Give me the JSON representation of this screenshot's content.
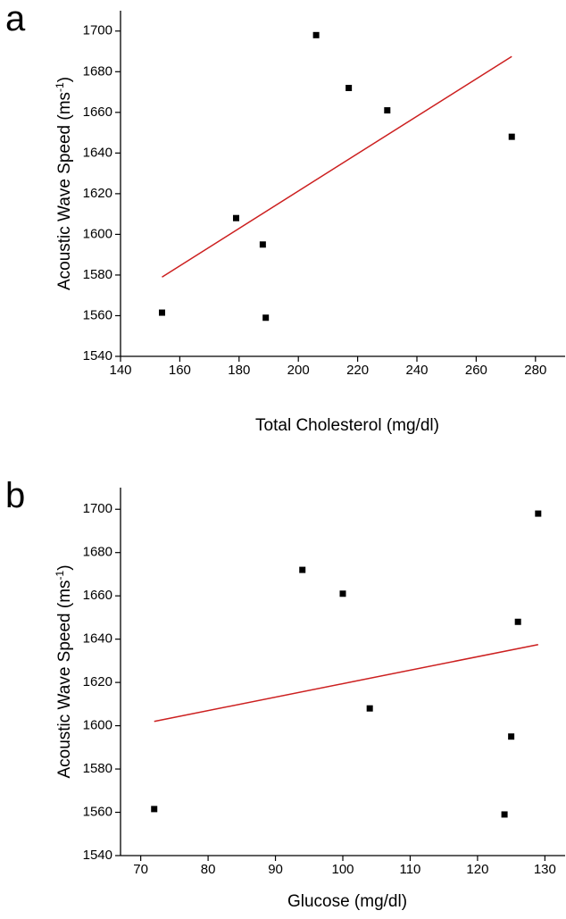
{
  "chart_data": [
    {
      "type": "scatter",
      "panel_label": "a",
      "x_label": "Total Cholesterol (mg/dl)",
      "y_label": [
        "Acoustic Wave Speed (ms",
        "-1",
        ")"
      ],
      "x": [
        154,
        179,
        188,
        189,
        206,
        217,
        230,
        272
      ],
      "values": [
        1561.5,
        1608,
        1595,
        1559,
        1698,
        1672,
        1661,
        1648
      ],
      "color": "#000000",
      "fit": {
        "x": [
          154,
          272
        ],
        "values": [
          1579,
          1687.5
        ],
        "color": "#cc1f1f"
      },
      "xlim": [
        140,
        290
      ],
      "xticks": [
        140,
        160,
        180,
        200,
        220,
        240,
        260,
        280
      ],
      "ylim": [
        1540,
        1710
      ],
      "yticks": [
        1540,
        1560,
        1580,
        1600,
        1620,
        1640,
        1660,
        1680,
        1700
      ]
    },
    {
      "type": "scatter",
      "panel_label": "b",
      "x_label": "Glucose (mg/dl)",
      "y_label": [
        "Acoustic Wave Speed (ms",
        "-1",
        ")"
      ],
      "x": [
        72,
        94,
        100,
        104,
        124,
        125,
        126,
        129
      ],
      "values": [
        1561.5,
        1672,
        1661,
        1608,
        1559,
        1595,
        1648,
        1698
      ],
      "color": "#000000",
      "fit": {
        "x": [
          72,
          129
        ],
        "values": [
          1602,
          1637.5
        ],
        "color": "#cc1f1f"
      },
      "xlim": [
        67,
        133
      ],
      "xticks": [
        70,
        80,
        90,
        100,
        110,
        120,
        130
      ],
      "ylim": [
        1540,
        1710
      ],
      "yticks": [
        1540,
        1560,
        1580,
        1600,
        1620,
        1640,
        1660,
        1680,
        1700
      ]
    }
  ]
}
